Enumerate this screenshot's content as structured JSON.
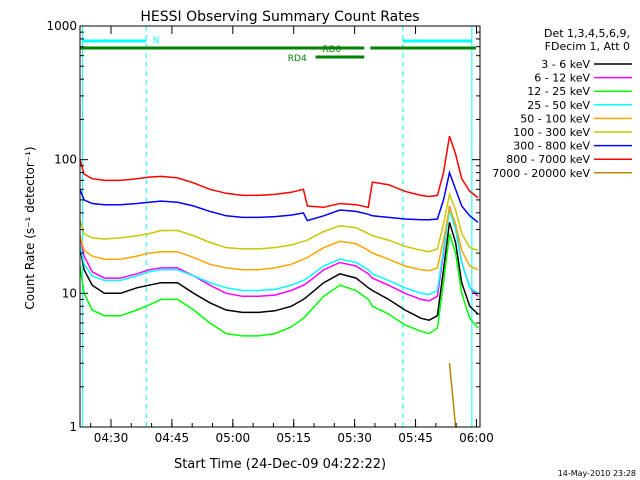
{
  "chart_data": {
    "type": "line",
    "title": "HESSI Observing Summary Count Rates",
    "xlabel": "Start Time (24-Dec-09 04:22:22)",
    "ylabel": "Count Rate (s⁻¹ detector⁻¹)",
    "x_units": "minutes since 04:22:22",
    "xlim": [
      0,
      98.5
    ],
    "ylim": [
      1,
      1000
    ],
    "yscale": "log",
    "x_ticks": [
      {
        "label": "04:30",
        "x": 7.63
      },
      {
        "label": "04:45",
        "x": 22.63
      },
      {
        "label": "05:00",
        "x": 37.63
      },
      {
        "label": "05:15",
        "x": 52.63
      },
      {
        "label": "05:30",
        "x": 67.63
      },
      {
        "label": "05:45",
        "x": 82.63
      },
      {
        "label": "06:00",
        "x": 97.63
      }
    ],
    "y_ticks": [
      {
        "label": "1",
        "y": 1
      },
      {
        "label": "10",
        "y": 10
      },
      {
        "label": "100",
        "y": 100
      },
      {
        "label": "1000",
        "y": 1000
      }
    ],
    "legend_position": "right",
    "legend_header": [
      "Det 1,3,4,5,6,9,",
      "FDecim 1, Att 0"
    ],
    "x": [
      0,
      1,
      3,
      6,
      10,
      14,
      17,
      20,
      24,
      28,
      32,
      36,
      40,
      44,
      48,
      52,
      55,
      56,
      60,
      64,
      68,
      71,
      72,
      76,
      80,
      84,
      86,
      88,
      89.5,
      91,
      92.5,
      94,
      96,
      98
    ],
    "series": [
      {
        "name": "3 - 6 keV",
        "color": "#000000",
        "values": [
          22,
          15,
          11.5,
          10,
          10,
          11,
          11.5,
          12,
          12,
          10,
          8.5,
          7.5,
          7.2,
          7.2,
          7.4,
          8,
          9,
          9.5,
          12,
          14,
          13,
          11,
          10.5,
          9,
          7.5,
          6.5,
          6.3,
          6.8,
          15,
          34,
          24,
          12,
          8,
          7
        ]
      },
      {
        "name": "6 - 12 keV",
        "color": "#ff00ff",
        "values": [
          27,
          19,
          14.5,
          13,
          13,
          14,
          15,
          15.5,
          15.5,
          13.5,
          11.5,
          10,
          9.5,
          9.5,
          9.7,
          10.5,
          11.5,
          12,
          15,
          17,
          16,
          14,
          13,
          11.5,
          10,
          9,
          8.8,
          9.5,
          20,
          45,
          31,
          17,
          11,
          9.5
        ]
      },
      {
        "name": "12 - 25 keV",
        "color": "#00ff00",
        "values": [
          16,
          10,
          7.5,
          6.8,
          6.8,
          7.5,
          8.2,
          9,
          9,
          7.5,
          6,
          5,
          4.8,
          4.8,
          5,
          5.6,
          6.5,
          7,
          9.5,
          11.5,
          10.5,
          9,
          8,
          7,
          5.8,
          5.2,
          5,
          5.5,
          12,
          28,
          20,
          10,
          6.5,
          5.5
        ]
      },
      {
        "name": "25 - 50 keV",
        "color": "#00ffff",
        "values": [
          23,
          16.5,
          13.5,
          12.5,
          12.5,
          13.5,
          14.5,
          15,
          15,
          13.5,
          12,
          11,
          10.5,
          10.5,
          10.7,
          11.5,
          12.5,
          13,
          16,
          18,
          17,
          15,
          14,
          12.5,
          11,
          10,
          9.8,
          10.5,
          21,
          42,
          30,
          17,
          11,
          10
        ]
      },
      {
        "name": "50 - 100 keV",
        "color": "#ffa500",
        "values": [
          27,
          21,
          19,
          18,
          18,
          19,
          20,
          20.5,
          20.5,
          18.5,
          16.5,
          15.5,
          15,
          15,
          15.5,
          16.5,
          18,
          18.5,
          22,
          24.5,
          23.5,
          21,
          20,
          18,
          16,
          15,
          14.8,
          15.5,
          25,
          44,
          33,
          21,
          16,
          15
        ]
      },
      {
        "name": "100 - 300 keV",
        "color": "#c8c800",
        "values": [
          35,
          28,
          26,
          25.5,
          26,
          27,
          28,
          29.5,
          29.5,
          27,
          24,
          22,
          21.5,
          21.5,
          22,
          23,
          24.5,
          25,
          29,
          32,
          31,
          28,
          27,
          25,
          22.5,
          21,
          20.5,
          21.5,
          33,
          55,
          42,
          28,
          22,
          21
        ]
      },
      {
        "name": "300 - 800 keV",
        "color": "#0000ff",
        "values": [
          60,
          50,
          47,
          46,
          46,
          47,
          48,
          49,
          48,
          45,
          41,
          38,
          37,
          37,
          37.5,
          38.5,
          40,
          35,
          38,
          42,
          41,
          39,
          38,
          37,
          36,
          35.5,
          35.5,
          36,
          50,
          80,
          60,
          45,
          38,
          34
        ]
      },
      {
        "name": "800 - 7000 keV",
        "color": "#ff0000",
        "values": [
          100,
          78,
          72,
          70,
          70,
          72,
          74,
          75,
          73,
          67,
          60,
          56,
          54,
          54,
          55,
          57,
          60,
          45,
          44,
          47,
          46,
          44,
          68,
          65,
          58,
          54,
          53,
          54,
          80,
          150,
          110,
          72,
          58,
          52
        ]
      },
      {
        "name": "7000 - 20000 keV",
        "color": "#b8860b",
        "values": [
          null,
          null,
          null,
          null,
          null,
          null,
          null,
          null,
          null,
          null,
          null,
          null,
          null,
          null,
          null,
          null,
          null,
          null,
          null,
          null,
          null,
          null,
          null,
          null,
          null,
          null,
          null,
          null,
          null,
          3,
          1,
          null,
          null,
          null
        ]
      }
    ],
    "annotations": [
      {
        "label": "N",
        "color": "#00ffff"
      },
      {
        "label": "RD0",
        "color": "#008000"
      },
      {
        "label": "RD4",
        "color": "#008000"
      }
    ],
    "timestamp": "14-May-2010 23:28"
  }
}
